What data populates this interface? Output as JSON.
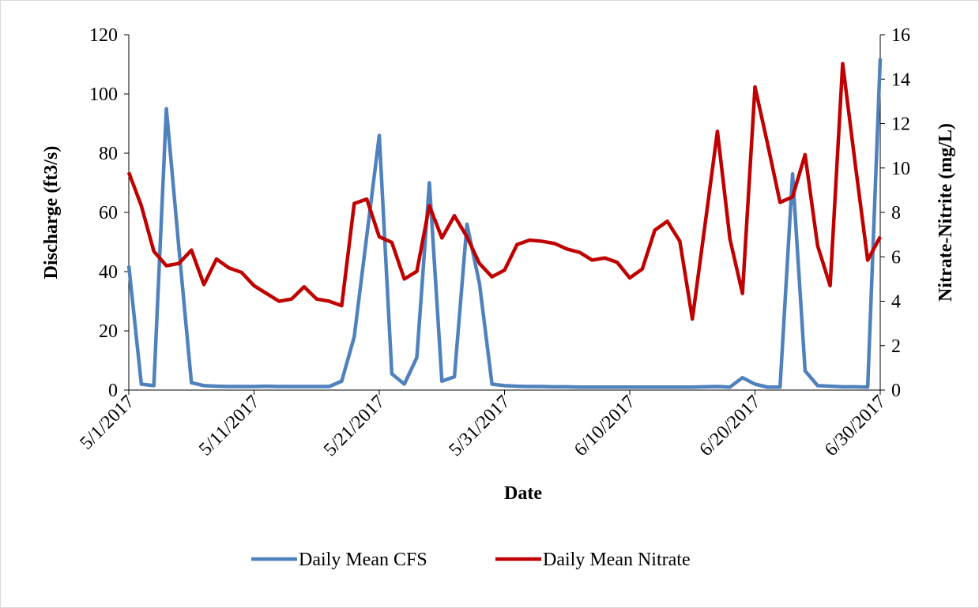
{
  "chart_data": {
    "type": "line",
    "x": [
      "5/1/2017",
      "5/2/2017",
      "5/3/2017",
      "5/4/2017",
      "5/5/2017",
      "5/6/2017",
      "5/7/2017",
      "5/8/2017",
      "5/9/2017",
      "5/10/2017",
      "5/11/2017",
      "5/12/2017",
      "5/13/2017",
      "5/14/2017",
      "5/15/2017",
      "5/16/2017",
      "5/17/2017",
      "5/18/2017",
      "5/19/2017",
      "5/20/2017",
      "5/21/2017",
      "5/22/2017",
      "5/23/2017",
      "5/24/2017",
      "5/25/2017",
      "5/26/2017",
      "5/27/2017",
      "5/28/2017",
      "5/29/2017",
      "5/30/2017",
      "5/31/2017",
      "6/1/2017",
      "6/2/2017",
      "6/3/2017",
      "6/4/2017",
      "6/5/2017",
      "6/6/2017",
      "6/7/2017",
      "6/8/2017",
      "6/9/2017",
      "6/10/2017",
      "6/11/2017",
      "6/12/2017",
      "6/13/2017",
      "6/14/2017",
      "6/15/2017",
      "6/16/2017",
      "6/17/2017",
      "6/18/2017",
      "6/19/2017",
      "6/20/2017",
      "6/21/2017",
      "6/22/2017",
      "6/23/2017",
      "6/24/2017",
      "6/25/2017",
      "6/26/2017",
      "6/27/2017",
      "6/28/2017",
      "6/29/2017",
      "6/30/2017"
    ],
    "series": [
      {
        "name": "Daily Mean CFS",
        "color": "#4f81bd",
        "axis": "y",
        "values": [
          42,
          2,
          1.5,
          95,
          48,
          2.5,
          1.5,
          1.3,
          1.2,
          1.2,
          1.2,
          1.3,
          1.2,
          1.2,
          1.2,
          1.2,
          1.2,
          3,
          18,
          52,
          86,
          5.5,
          2,
          11,
          70,
          3,
          4.5,
          56,
          36,
          2,
          1.5,
          1.3,
          1.2,
          1.2,
          1.1,
          1.1,
          1.0,
          1.0,
          1.0,
          1.0,
          1.0,
          1.0,
          1.0,
          1.0,
          1.0,
          1.0,
          1.1,
          1.2,
          1.0,
          4.2,
          2,
          1,
          1,
          73,
          6.5,
          1.5,
          1.3,
          1.1,
          1.1,
          1,
          112
        ]
      },
      {
        "name": "Daily Mean Nitrate",
        "color": "#c00000",
        "axis": "y2",
        "values": [
          9.8,
          8.3,
          6.25,
          5.6,
          5.7,
          6.3,
          4.75,
          5.9,
          5.5,
          5.3,
          4.7,
          4.35,
          4.0,
          4.1,
          4.65,
          4.1,
          4.0,
          3.8,
          8.4,
          8.6,
          6.9,
          6.65,
          5.0,
          5.35,
          8.3,
          6.85,
          7.85,
          6.9,
          5.7,
          5.1,
          5.4,
          6.55,
          6.75,
          6.7,
          6.6,
          6.35,
          6.2,
          5.85,
          5.95,
          5.75,
          5.05,
          5.45,
          7.2,
          7.6,
          6.7,
          3.2,
          7.4,
          11.65,
          6.8,
          4.35,
          13.65,
          11.1,
          8.45,
          8.7,
          10.6,
          6.5,
          4.7,
          14.7,
          10.2,
          5.85,
          6.9
        ]
      }
    ],
    "xlabel": "Date",
    "ylabel": "Discharge (ft3/s)",
    "y2label": "Nitrate-Nitrite (mg/L)",
    "ylim": [
      0,
      120
    ],
    "yticks": [
      0,
      20,
      40,
      60,
      80,
      100,
      120
    ],
    "y2lim": [
      0,
      16
    ],
    "y2ticks": [
      0,
      2,
      4,
      6,
      8,
      10,
      12,
      14,
      16
    ],
    "grid": false,
    "legend": "bottom"
  }
}
